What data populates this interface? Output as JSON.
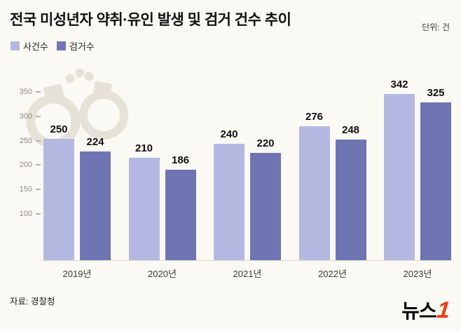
{
  "header": {
    "title": "전국 미성년자 약취·유인 발생 및 검거 건수 추이",
    "unit_label": "단위: 건"
  },
  "legend": [
    {
      "label": "사건수",
      "color": "#b5b9e1"
    },
    {
      "label": "검거수",
      "color": "#6f75b3"
    }
  ],
  "chart_data": {
    "type": "bar",
    "title": "전국 미성년자 약취·유인 발생 및 검거 건수 추이",
    "categories": [
      "2019년",
      "2020년",
      "2021년",
      "2022년",
      "2023년"
    ],
    "series": [
      {
        "name": "사건수",
        "color": "#b5b9e1",
        "values": [
          250,
          210,
          240,
          276,
          342
        ]
      },
      {
        "name": "검거수",
        "color": "#6f75b3",
        "values": [
          224,
          186,
          220,
          248,
          325
        ]
      }
    ],
    "xlabel": "",
    "ylabel": "",
    "ylim": [
      0,
      375
    ],
    "yticks": [
      100,
      150,
      200,
      250,
      300,
      350
    ],
    "grid": false,
    "legend_position": "top-left"
  },
  "footer": {
    "source": "자료: 경찰청",
    "logo_text": "뉴스",
    "logo_number": "1"
  },
  "colors": {
    "background": "#fbf9f4",
    "bar_light": "#b5b9e1",
    "bar_dark": "#6f75b3",
    "logo_red": "#ee3a14",
    "watermark": "#e6e2d8"
  }
}
